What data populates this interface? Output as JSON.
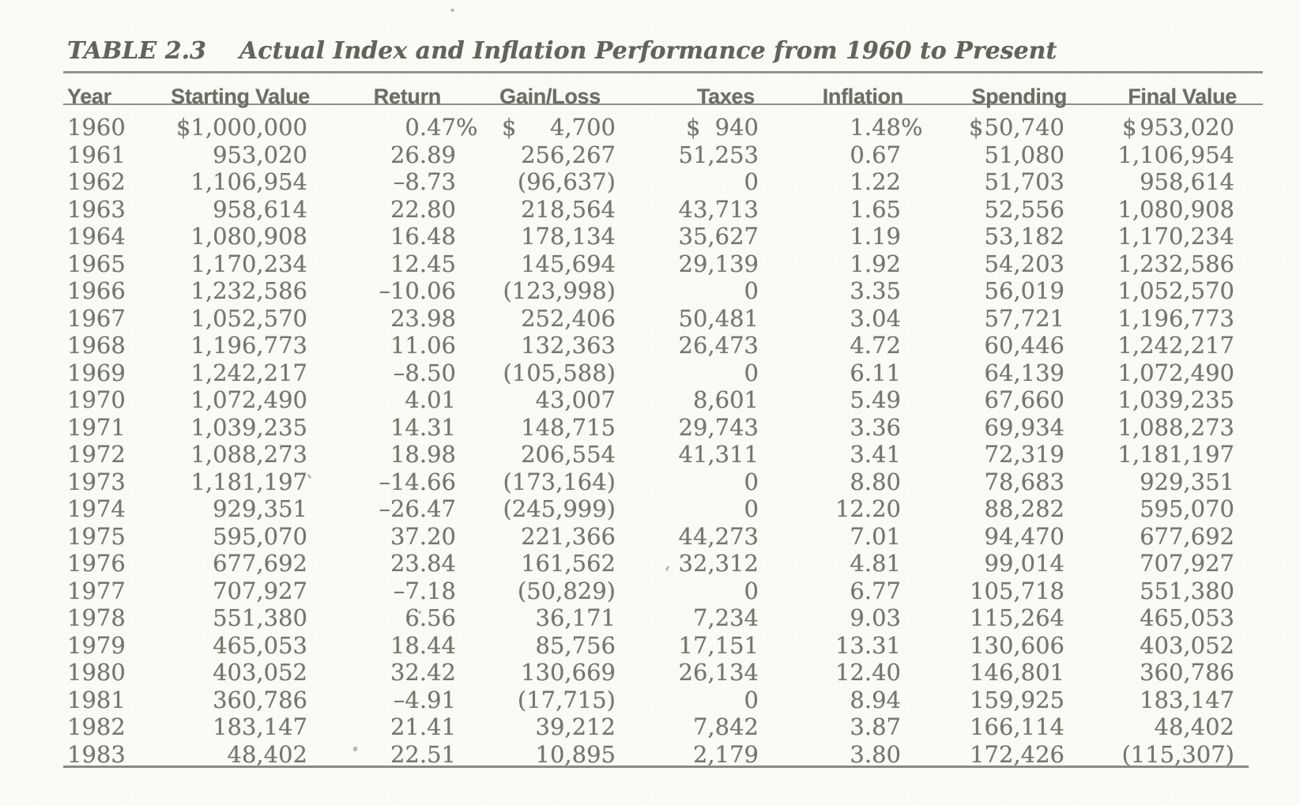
{
  "title": {
    "label": "TABLE 2.3",
    "caption": "Actual Index and Inflation Performance from 1960 to Present"
  },
  "table": {
    "columns": [
      "Year",
      "Starting Value",
      "Return",
      "Gain/Loss",
      "Taxes",
      "Inflation",
      "Spending",
      "Final Value"
    ],
    "rows": [
      [
        "1960",
        "$1,000,000",
        "0.47%",
        "$|4,700",
        "$|940",
        "1.48%",
        "$|50,740",
        "$|953,020"
      ],
      [
        "1961",
        "953,020",
        "26.89",
        "256,267",
        "51,253",
        "0.67",
        "51,080",
        "1,106,954"
      ],
      [
        "1962",
        "1,106,954",
        "–8.73",
        "(96,637)",
        "0",
        "1.22",
        "51,703",
        "958,614"
      ],
      [
        "1963",
        "958,614",
        "22.80",
        "218,564",
        "43,713",
        "1.65",
        "52,556",
        "1,080,908"
      ],
      [
        "1964",
        "1,080,908",
        "16.48",
        "178,134",
        "35,627",
        "1.19",
        "53,182",
        "1,170,234"
      ],
      [
        "1965",
        "1,170,234",
        "12.45",
        "145,694",
        "29,139",
        "1.92",
        "54,203",
        "1,232,586"
      ],
      [
        "1966",
        "1,232,586",
        "–10.06",
        "(123,998)",
        "0",
        "3.35",
        "56,019",
        "1,052,570"
      ],
      [
        "1967",
        "1,052,570",
        "23.98",
        "252,406",
        "50,481",
        "3.04",
        "57,721",
        "1,196,773"
      ],
      [
        "1968",
        "1,196,773",
        "11.06",
        "132,363",
        "26,473",
        "4.72",
        "60,446",
        "1,242,217"
      ],
      [
        "1969",
        "1,242,217",
        "–8.50",
        "(105,588)",
        "0",
        "6.11",
        "64,139",
        "1,072,490"
      ],
      [
        "1970",
        "1,072,490",
        "4.01",
        "43,007",
        "8,601",
        "5.49",
        "67,660",
        "1,039,235"
      ],
      [
        "1971",
        "1,039,235",
        "14.31",
        "148,715",
        "29,743",
        "3.36",
        "69,934",
        "1,088,273"
      ],
      [
        "1972",
        "1,088,273",
        "18.98",
        "206,554",
        "41,311",
        "3.41",
        "72,319",
        "1,181,197"
      ],
      [
        "1973",
        "1,181,197",
        "–14.66",
        "(173,164)",
        "0",
        "8.80",
        "78,683",
        "929,351"
      ],
      [
        "1974",
        "929,351",
        "–26.47",
        "(245,999)",
        "0",
        "12.20",
        "88,282",
        "595,070"
      ],
      [
        "1975",
        "595,070",
        "37.20",
        "221,366",
        "44,273",
        "7.01",
        "94,470",
        "677,692"
      ],
      [
        "1976",
        "677,692",
        "23.84",
        "161,562",
        "32,312",
        "4.81",
        "99,014",
        "707,927"
      ],
      [
        "1977",
        "707,927",
        "–7.18",
        "(50,829)",
        "0",
        "6.77",
        "105,718",
        "551,380"
      ],
      [
        "1978",
        "551,380",
        "6.56",
        "36,171",
        "7,234",
        "9.03",
        "115,264",
        "465,053"
      ],
      [
        "1979",
        "465,053",
        "18.44",
        "85,756",
        "17,151",
        "13.31",
        "130,606",
        "403,052"
      ],
      [
        "1980",
        "403,052",
        "32.42",
        "130,669",
        "26,134",
        "12.40",
        "146,801",
        "360,786"
      ],
      [
        "1981",
        "360,786",
        "–4.91",
        "(17,715)",
        "0",
        "8.94",
        "159,925",
        "183,147"
      ],
      [
        "1982",
        "183,147",
        "21.41",
        "39,212",
        "7,842",
        "3.87",
        "166,114",
        "48,402"
      ],
      [
        "1983",
        "48,402",
        "22.51",
        "10,895",
        "2,179",
        "3.80",
        "172,426",
        "(115,307)"
      ]
    ]
  },
  "colors": {
    "paper": "#fbfaf7",
    "text": "#76766e",
    "heading": "#6d6d66",
    "title": "#63635b",
    "rule": "#92928b"
  }
}
